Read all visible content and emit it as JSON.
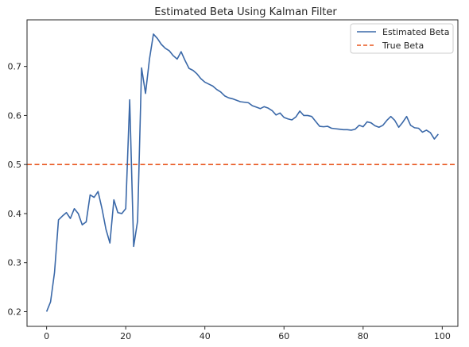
{
  "chart_data": {
    "type": "line",
    "title": "Estimated Beta Using Kalman Filter",
    "xlabel": "",
    "ylabel": "",
    "xlim": [
      -4.95,
      103.95
    ],
    "ylim": [
      0.17,
      0.795
    ],
    "xticks": [
      0,
      20,
      40,
      60,
      80,
      100
    ],
    "yticks": [
      0.2,
      0.3,
      0.4,
      0.5,
      0.6,
      0.7
    ],
    "xtick_labels": [
      "0",
      "20",
      "40",
      "60",
      "80",
      "100"
    ],
    "ytick_labels": [
      "0.2",
      "0.3",
      "0.4",
      "0.5",
      "0.6",
      "0.7"
    ],
    "grid": false,
    "legend_position": "top-right",
    "series": [
      {
        "name": "Estimated Beta",
        "style": "solid",
        "color": "#3a68a8",
        "x": [
          0,
          1,
          2,
          3,
          4,
          5,
          6,
          7,
          8,
          9,
          10,
          11,
          12,
          13,
          14,
          15,
          16,
          17,
          18,
          19,
          20,
          21,
          22,
          23,
          24,
          25,
          26,
          27,
          28,
          29,
          30,
          31,
          32,
          33,
          34,
          35,
          36,
          37,
          38,
          39,
          40,
          41,
          42,
          43,
          44,
          45,
          46,
          47,
          48,
          49,
          50,
          51,
          52,
          53,
          54,
          55,
          56,
          57,
          58,
          59,
          60,
          61,
          62,
          63,
          64,
          65,
          66,
          67,
          68,
          69,
          70,
          71,
          72,
          73,
          74,
          75,
          76,
          77,
          78,
          79,
          80,
          81,
          82,
          83,
          84,
          85,
          86,
          87,
          88,
          89,
          90,
          91,
          92,
          93,
          94,
          95,
          96,
          97,
          98,
          99
        ],
        "values": [
          0.2,
          0.22,
          0.28,
          0.387,
          0.395,
          0.402,
          0.39,
          0.41,
          0.4,
          0.377,
          0.383,
          0.438,
          0.433,
          0.445,
          0.41,
          0.368,
          0.34,
          0.428,
          0.402,
          0.4,
          0.41,
          0.632,
          0.333,
          0.385,
          0.697,
          0.645,
          0.715,
          0.766,
          0.757,
          0.745,
          0.737,
          0.732,
          0.722,
          0.715,
          0.73,
          0.712,
          0.696,
          0.692,
          0.685,
          0.675,
          0.668,
          0.664,
          0.66,
          0.653,
          0.648,
          0.64,
          0.636,
          0.634,
          0.631,
          0.628,
          0.627,
          0.626,
          0.62,
          0.617,
          0.614,
          0.618,
          0.615,
          0.61,
          0.601,
          0.605,
          0.596,
          0.593,
          0.591,
          0.597,
          0.609,
          0.6,
          0.6,
          0.598,
          0.588,
          0.578,
          0.577,
          0.578,
          0.574,
          0.573,
          0.572,
          0.571,
          0.571,
          0.57,
          0.572,
          0.58,
          0.577,
          0.587,
          0.585,
          0.579,
          0.576,
          0.58,
          0.59,
          0.598,
          0.59,
          0.576,
          0.586,
          0.598,
          0.58,
          0.575,
          0.574,
          0.566,
          0.57,
          0.565,
          0.552,
          0.562
        ]
      },
      {
        "name": "True Beta",
        "style": "dashed",
        "color": "#e8561e",
        "constant": 0.5
      }
    ]
  }
}
